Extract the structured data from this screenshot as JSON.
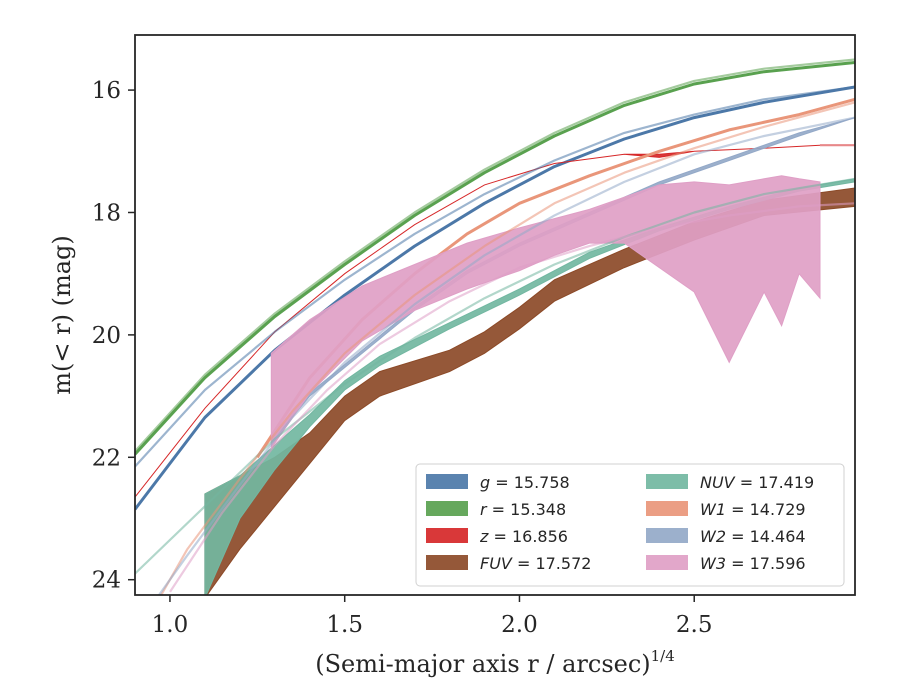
{
  "chart_data": {
    "type": "line",
    "xlabel": "(Semi-major axis r / arcsec)",
    "xlabel_sup": "1/4",
    "ylabel": "m(< r) (mag)",
    "xlim": [
      0.9,
      2.96
    ],
    "ylim": [
      24.25,
      15.1
    ],
    "y_inverted": true,
    "xticks": [
      1.0,
      1.5,
      2.0,
      2.5
    ],
    "xtick_labels": [
      "1.0",
      "1.5",
      "2.0",
      "2.5"
    ],
    "yticks": [
      16,
      18,
      20,
      22,
      24
    ],
    "ytick_labels": [
      "16",
      "18",
      "20",
      "22",
      "24"
    ],
    "grid": false,
    "legend_position": "lower-right",
    "legend_columns": 2,
    "series": [
      {
        "name": "g",
        "legend_value": "15.758",
        "color": "#4c78a8",
        "band_x": [
          0.9,
          1.1,
          1.3,
          1.5,
          1.7,
          1.9,
          2.1,
          2.3,
          2.5,
          2.7,
          2.96
        ],
        "band_low": [
          22.85,
          21.35,
          20.25,
          19.35,
          18.55,
          17.85,
          17.25,
          16.8,
          16.45,
          16.2,
          15.95
        ],
        "band_high": [
          22.85,
          21.35,
          20.25,
          19.35,
          18.55,
          17.85,
          17.25,
          16.8,
          16.45,
          16.2,
          15.95
        ],
        "model_x": [
          0.9,
          1.1,
          1.3,
          1.5,
          1.7,
          1.9,
          2.1,
          2.3,
          2.5,
          2.7,
          2.96
        ],
        "model_y": [
          22.15,
          20.9,
          19.95,
          19.1,
          18.35,
          17.7,
          17.15,
          16.7,
          16.4,
          16.15,
          15.95
        ]
      },
      {
        "name": "r",
        "legend_value": "15.348",
        "color": "#59a14f",
        "band_x": [
          0.9,
          1.1,
          1.3,
          1.5,
          1.7,
          1.9,
          2.1,
          2.3,
          2.5,
          2.7,
          2.96
        ],
        "band_low": [
          21.95,
          20.7,
          19.7,
          18.85,
          18.05,
          17.35,
          16.75,
          16.25,
          15.9,
          15.7,
          15.55
        ],
        "band_high": [
          21.95,
          20.7,
          19.7,
          18.85,
          18.05,
          17.35,
          16.75,
          16.25,
          15.9,
          15.7,
          15.55
        ],
        "model_x": [
          0.9,
          1.1,
          1.3,
          1.5,
          1.7,
          1.9,
          2.1,
          2.3,
          2.5,
          2.7,
          2.96
        ],
        "model_y": [
          21.9,
          20.65,
          19.65,
          18.8,
          18.0,
          17.3,
          16.7,
          16.2,
          15.85,
          15.65,
          15.5
        ]
      },
      {
        "name": "z",
        "legend_value": "16.856",
        "color": "#d62728",
        "band_x": [
          0.9,
          1.1,
          1.3,
          1.5,
          1.7,
          1.9,
          2.1,
          2.3,
          2.4,
          2.5,
          2.7,
          2.86
        ],
        "band_low": [
          22.65,
          21.2,
          19.95,
          19.0,
          18.2,
          17.55,
          17.2,
          17.05,
          17.05,
          17.0,
          16.95,
          16.9
        ],
        "band_high": [
          22.65,
          21.2,
          19.95,
          19.0,
          18.2,
          17.55,
          17.2,
          17.05,
          17.1,
          17.0,
          16.95,
          16.9
        ],
        "model_x": [
          2.86,
          2.96
        ],
        "model_y": [
          16.9,
          16.9
        ]
      },
      {
        "name": "FUV",
        "legend_value": "17.572",
        "color": "#8c4a28",
        "band_x": [
          1.1,
          1.2,
          1.3,
          1.4,
          1.5,
          1.6,
          1.8,
          1.9,
          2.0,
          2.1,
          2.3,
          2.5,
          2.7,
          2.96
        ],
        "band_low": [
          24.3,
          23.5,
          22.8,
          22.1,
          21.4,
          21.0,
          20.6,
          20.3,
          19.9,
          19.45,
          18.9,
          18.45,
          18.05,
          17.9
        ],
        "band_high": [
          22.6,
          22.3,
          22.0,
          21.6,
          21.0,
          20.6,
          20.25,
          19.95,
          19.55,
          19.1,
          18.6,
          18.15,
          17.8,
          17.6
        ],
        "model_x": [],
        "model_y": []
      },
      {
        "name": "NUV",
        "legend_value": "17.419",
        "color": "#72b7a1",
        "band_x": [
          1.1,
          1.2,
          1.3,
          1.4,
          1.5,
          1.6,
          1.8,
          2.0,
          2.2,
          2.4,
          2.6,
          2.8,
          2.96
        ],
        "band_low": [
          24.3,
          23.0,
          22.2,
          21.5,
          20.9,
          20.5,
          19.9,
          19.35,
          18.75,
          18.3,
          17.95,
          17.65,
          17.5
        ],
        "band_high": [
          22.6,
          22.3,
          21.8,
          21.3,
          20.75,
          20.35,
          19.8,
          19.25,
          18.65,
          18.25,
          17.9,
          17.6,
          17.45
        ],
        "model_x": [
          0.9,
          1.1,
          1.3,
          1.5,
          1.7,
          1.9,
          2.1,
          2.3,
          2.5,
          2.7,
          2.96
        ],
        "model_y": [
          23.9,
          22.8,
          21.7,
          20.8,
          20.05,
          19.4,
          18.85,
          18.4,
          18.0,
          17.7,
          17.45
        ]
      },
      {
        "name": "W1",
        "legend_value": "14.729",
        "color": "#e9967a",
        "band_x": [
          1.25,
          1.4,
          1.55,
          1.7,
          1.85,
          2.0,
          2.2,
          2.4,
          2.6,
          2.8,
          2.96
        ],
        "band_low": [
          22.0,
          20.7,
          19.75,
          19.0,
          18.35,
          17.85,
          17.4,
          17.0,
          16.65,
          16.4,
          16.15
        ],
        "band_high": [
          22.0,
          20.7,
          19.75,
          19.0,
          18.35,
          17.85,
          17.4,
          17.0,
          16.65,
          16.4,
          16.15
        ],
        "model_x": [
          0.9,
          1.05,
          1.2,
          1.35,
          1.5,
          1.7,
          1.9,
          2.1,
          2.3,
          2.5,
          2.7,
          2.96
        ],
        "model_y": [
          25.0,
          23.5,
          22.35,
          21.25,
          20.3,
          19.35,
          18.55,
          17.85,
          17.35,
          16.95,
          16.6,
          16.2
        ]
      },
      {
        "name": "W2",
        "legend_value": "14.464",
        "color": "#94a9c8",
        "band_x": [
          1.29,
          1.4,
          1.55,
          1.7,
          1.85,
          2.0,
          2.2,
          2.4,
          2.6,
          2.8,
          2.96
        ],
        "band_low": [
          21.75,
          21.0,
          20.3,
          19.6,
          19.0,
          18.55,
          18.05,
          17.55,
          17.15,
          16.75,
          16.45
        ],
        "band_high": [
          21.7,
          20.95,
          20.25,
          19.55,
          18.95,
          18.5,
          18.0,
          17.5,
          17.1,
          16.7,
          16.45
        ],
        "model_x": [
          0.9,
          1.05,
          1.2,
          1.35,
          1.5,
          1.7,
          1.9,
          2.1,
          2.3,
          2.5,
          2.7,
          2.96
        ],
        "model_y": [
          24.8,
          23.6,
          22.45,
          21.35,
          20.45,
          19.5,
          18.7,
          18.05,
          17.5,
          17.05,
          16.75,
          16.45
        ]
      },
      {
        "name": "W3",
        "legend_value": "17.596",
        "color": "#df9fc6",
        "band_x": [
          1.29,
          1.4,
          1.55,
          1.7,
          1.85,
          2.0,
          2.1,
          2.2,
          2.3,
          2.4,
          2.5,
          2.6,
          2.7,
          2.75,
          2.8,
          2.86
        ],
        "band_low": [
          21.85,
          20.95,
          20.1,
          19.6,
          19.25,
          18.95,
          18.7,
          18.5,
          18.5,
          18.9,
          19.3,
          20.45,
          19.3,
          19.85,
          19.0,
          19.4
        ],
        "band_high": [
          20.3,
          19.75,
          19.2,
          18.85,
          18.5,
          18.25,
          18.1,
          17.95,
          17.75,
          17.55,
          17.5,
          17.55,
          17.45,
          17.4,
          17.45,
          17.5
        ],
        "model_x": [
          1.0,
          1.15,
          1.3,
          1.45,
          1.6,
          1.8,
          2.0,
          2.2,
          2.4,
          2.6,
          2.8,
          2.96
        ],
        "model_y": [
          24.2,
          22.9,
          21.8,
          20.9,
          20.15,
          19.45,
          18.9,
          18.55,
          18.25,
          18.05,
          17.9,
          17.85
        ]
      }
    ]
  }
}
